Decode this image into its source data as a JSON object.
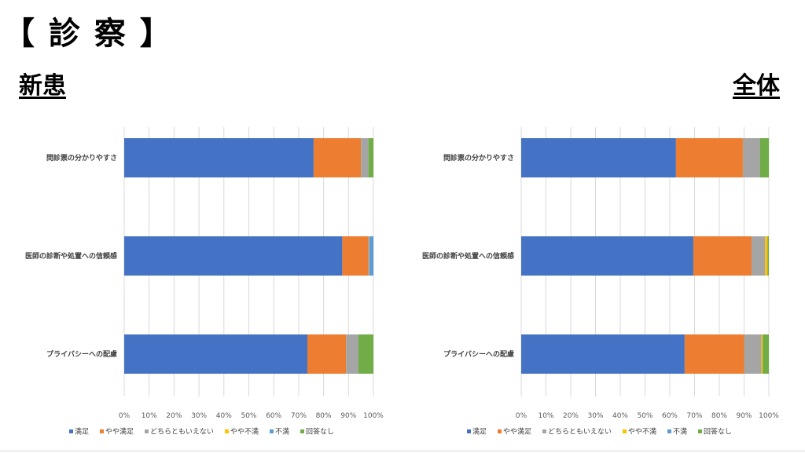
{
  "page": {
    "title": "【 診 察 】",
    "left_label": "新患",
    "right_label": "全体"
  },
  "chart_data": [
    {
      "type": "bar",
      "orientation": "horizontal",
      "stacked": true,
      "panel": "新患",
      "categories": [
        "問診票の分かりやすさ",
        "医師の診断や処置への信頼感",
        "プライバシーへの配慮"
      ],
      "x_ticks": [
        "0%",
        "10%",
        "20%",
        "30%",
        "40%",
        "50%",
        "60%",
        "70%",
        "80%",
        "90%",
        "100%"
      ],
      "xlim": [
        0,
        100
      ],
      "grid": true,
      "legend_position": "bottom",
      "series": [
        {
          "name": "満足",
          "color": "#4472C4",
          "values": [
            76,
            87.5,
            73.5
          ]
        },
        {
          "name": "やや満足",
          "color": "#ED7D31",
          "values": [
            19,
            10.5,
            15.5
          ]
        },
        {
          "name": "どちらともいえない",
          "color": "#A5A5A5",
          "values": [
            3,
            0.5,
            5
          ]
        },
        {
          "name": "やや不満",
          "color": "#FFC000",
          "values": [
            0,
            0,
            0
          ]
        },
        {
          "name": "不満",
          "color": "#5B9BD5",
          "values": [
            0,
            1.5,
            0
          ]
        },
        {
          "name": "回答なし",
          "color": "#70AD47",
          "values": [
            2,
            0,
            6
          ]
        }
      ]
    },
    {
      "type": "bar",
      "orientation": "horizontal",
      "stacked": true,
      "panel": "全体",
      "categories": [
        "問診票の分かりやすさ",
        "医師の診断や処置への信頼感",
        "プライバシーへの配慮"
      ],
      "x_ticks": [
        "0%",
        "10%",
        "20%",
        "30%",
        "40%",
        "50%",
        "60%",
        "70%",
        "80%",
        "90%",
        "100%"
      ],
      "xlim": [
        0,
        100
      ],
      "grid": true,
      "legend_position": "bottom",
      "series": [
        {
          "name": "満足",
          "color": "#4472C4",
          "values": [
            62.5,
            69.5,
            66
          ]
        },
        {
          "name": "やや満足",
          "color": "#ED7D31",
          "values": [
            27,
            23.5,
            24
          ]
        },
        {
          "name": "どちらともいえない",
          "color": "#A5A5A5",
          "values": [
            7,
            5.5,
            7
          ]
        },
        {
          "name": "やや不満",
          "color": "#FFC000",
          "values": [
            0,
            1,
            0.5
          ]
        },
        {
          "name": "不満",
          "color": "#5B9BD5",
          "values": [
            0,
            0,
            0
          ]
        },
        {
          "name": "回答なし",
          "color": "#70AD47",
          "values": [
            3.5,
            0.5,
            2.5
          ]
        }
      ]
    }
  ]
}
